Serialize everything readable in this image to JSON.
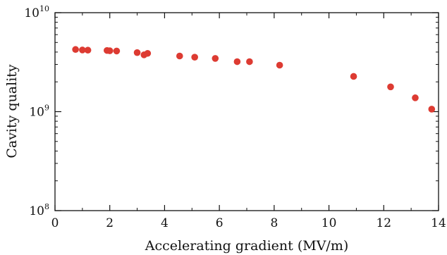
{
  "chart_data": {
    "type": "scatter",
    "xlabel": "Accelerating gradient (MV/m)",
    "ylabel": "Cavity quality",
    "xlim": [
      0,
      14
    ],
    "ylim": [
      100000000,
      10000000000
    ],
    "yscale": "log",
    "x_ticks": [
      0,
      2,
      4,
      6,
      8,
      10,
      12,
      14
    ],
    "y_ticks": [
      {
        "base": "10",
        "exp": "8",
        "value": 100000000
      },
      {
        "base": "10",
        "exp": "9",
        "value": 1000000000
      },
      {
        "base": "10",
        "exp": "10",
        "value": 10000000000
      }
    ],
    "grid": false,
    "legend": "none",
    "marker_color": "#dd3b32",
    "series": [
      {
        "points": [
          {
            "x": 0.75,
            "y": 4250000000
          },
          {
            "x": 1.0,
            "y": 4200000000
          },
          {
            "x": 1.2,
            "y": 4180000000
          },
          {
            "x": 1.9,
            "y": 4150000000
          },
          {
            "x": 2.0,
            "y": 4120000000
          },
          {
            "x": 2.25,
            "y": 4100000000
          },
          {
            "x": 3.0,
            "y": 3950000000
          },
          {
            "x": 3.25,
            "y": 3750000000
          },
          {
            "x": 3.38,
            "y": 3880000000
          },
          {
            "x": 4.55,
            "y": 3650000000
          },
          {
            "x": 5.1,
            "y": 3550000000
          },
          {
            "x": 5.85,
            "y": 3450000000
          },
          {
            "x": 6.65,
            "y": 3200000000
          },
          {
            "x": 7.1,
            "y": 3200000000
          },
          {
            "x": 8.2,
            "y": 2950000000
          },
          {
            "x": 10.9,
            "y": 2270000000
          },
          {
            "x": 12.25,
            "y": 1780000000
          },
          {
            "x": 13.15,
            "y": 1380000000
          },
          {
            "x": 13.75,
            "y": 1060000000
          }
        ]
      }
    ]
  }
}
